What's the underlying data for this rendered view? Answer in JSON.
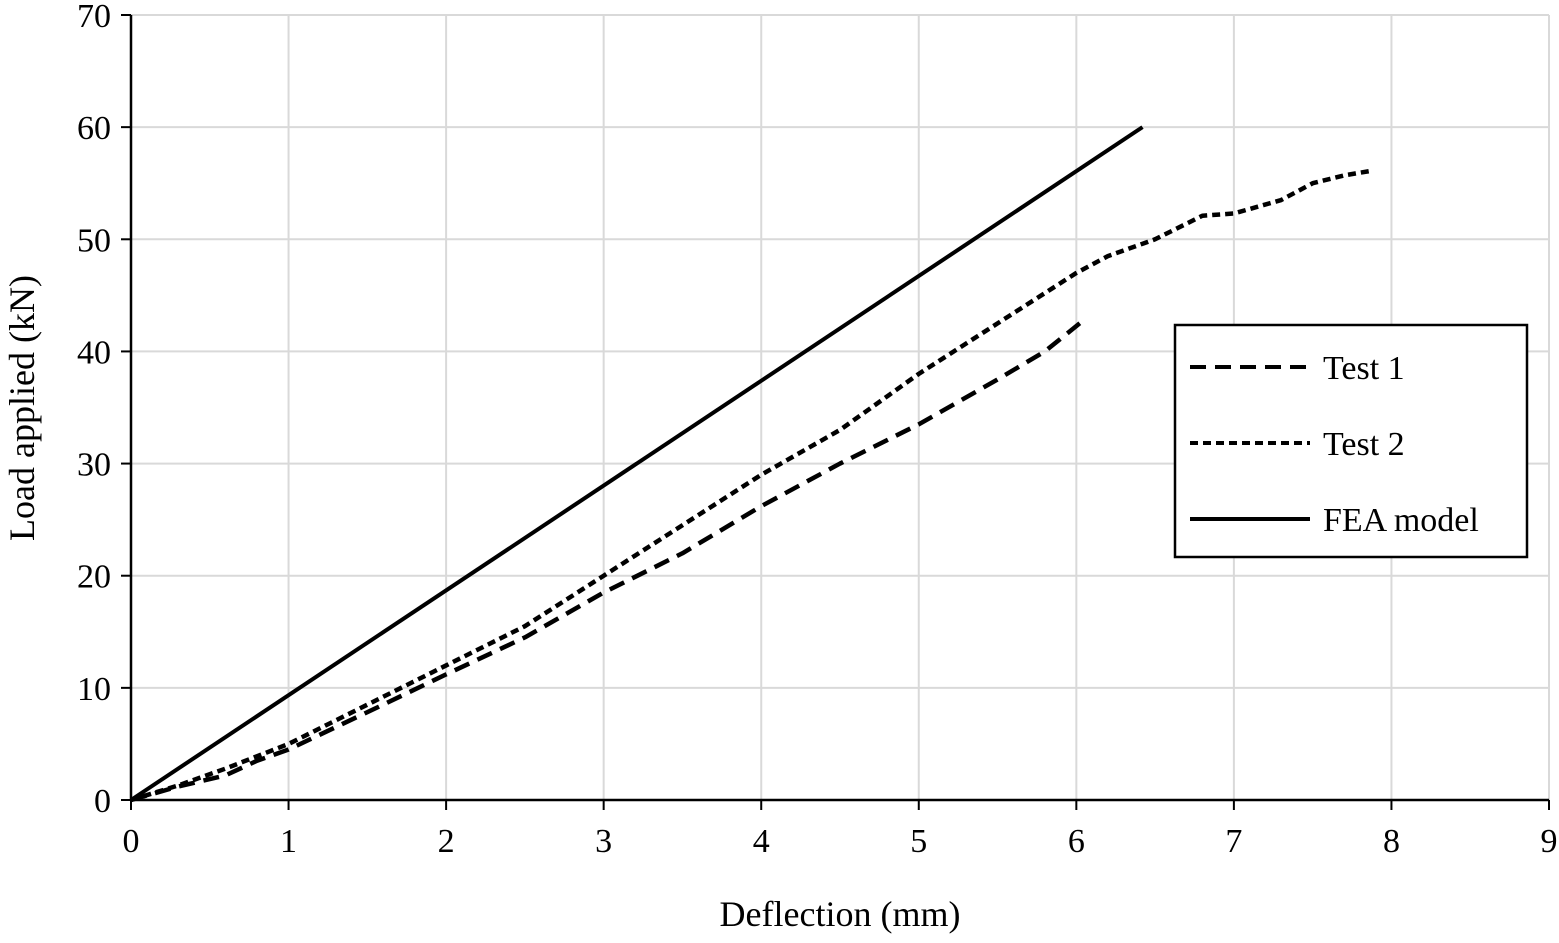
{
  "chart_data": {
    "type": "line",
    "title": "",
    "xlabel": "Deflection (mm)",
    "ylabel": "Load applied (kN)",
    "xlim": [
      0,
      9
    ],
    "ylim": [
      0,
      70
    ],
    "xticks": [
      0,
      1,
      2,
      3,
      4,
      5,
      6,
      7,
      8,
      9
    ],
    "yticks": [
      0,
      10,
      20,
      30,
      40,
      50,
      60,
      70
    ],
    "grid": true,
    "legend_position": "right",
    "series": [
      {
        "name": "Test 1",
        "style": "dashed",
        "color": "#000000",
        "x": [
          0,
          0.3,
          0.6,
          0.8,
          1,
          1.3,
          1.6,
          2,
          2.5,
          3,
          3.5,
          4,
          4.5,
          5,
          5.5,
          5.8,
          6.03
        ],
        "y": [
          0,
          1.2,
          2.2,
          3.5,
          4.5,
          6.5,
          8.5,
          11.2,
          14.5,
          18.5,
          22,
          26.2,
          30,
          33.5,
          37.5,
          40,
          42.6
        ]
      },
      {
        "name": "Test 2",
        "style": "dotted",
        "color": "#000000",
        "x": [
          0,
          0.3,
          0.6,
          1,
          1.5,
          2,
          2.5,
          3,
          3.5,
          4,
          4.5,
          5,
          5.5,
          6,
          6.2,
          6.5,
          6.8,
          7,
          7.3,
          7.5,
          7.7,
          7.87
        ],
        "y": [
          0,
          1.3,
          2.8,
          5,
          8.5,
          12,
          15.5,
          20,
          24.5,
          29,
          33,
          38,
          42.5,
          47,
          48.5,
          50,
          52.1,
          52.3,
          53.5,
          55,
          55.7,
          56.1
        ]
      },
      {
        "name": "FEA model",
        "style": "solid",
        "color": "#000000",
        "x": [
          0,
          6.42
        ],
        "y": [
          0,
          60
        ]
      }
    ]
  }
}
